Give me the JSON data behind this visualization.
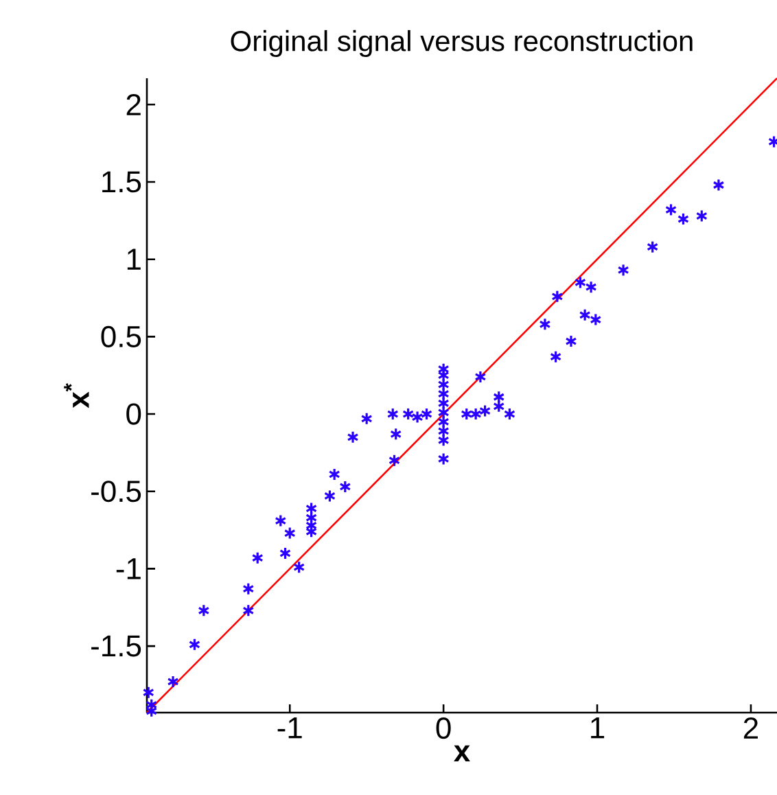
{
  "chart_data": {
    "type": "scatter",
    "title": "Original signal versus reconstruction",
    "xlabel": "x",
    "ylabel": "x$^{*}$",
    "xlim": [
      -1.93,
      2.17
    ],
    "ylim": [
      -1.93,
      2.17
    ],
    "xticks": [
      -1,
      0,
      1,
      2
    ],
    "yticks": [
      -1.5,
      -1,
      -0.5,
      0,
      0.5,
      1,
      1.5,
      2
    ],
    "grid": false,
    "legend": false,
    "series": [
      {
        "color": "#2a00ff",
        "marker": "cross",
        "x": [
          -1.9,
          -1.92,
          -1.9,
          -1.76,
          -1.62,
          -1.56,
          -1.27,
          -1.27,
          -1.21,
          -1.03,
          -0.94,
          -1.06,
          -1.0,
          -0.86,
          -0.86,
          -0.86,
          -0.86,
          -0.74,
          -0.71,
          -0.64,
          -0.59,
          -0.5,
          -0.33,
          -0.31,
          -0.32,
          -0.23,
          -0.17,
          -0.11,
          0,
          0,
          0,
          0,
          0,
          0,
          0,
          0,
          0,
          0,
          0.15,
          0.21,
          0.27,
          0.24,
          0.36,
          0.36,
          0.43,
          0.73,
          0.83,
          0.66,
          0.74,
          0.89,
          0.96,
          0.92,
          0.99,
          1.17,
          1.36,
          1.48,
          1.56,
          1.68,
          1.79,
          2.15
        ],
        "values": [
          -1.92,
          -1.8,
          -1.88,
          -1.73,
          -1.49,
          -1.27,
          -1.27,
          -1.13,
          -0.93,
          -0.9,
          -0.99,
          -0.69,
          -0.77,
          -0.61,
          -0.67,
          -0.72,
          -0.76,
          -0.53,
          -0.39,
          -0.47,
          -0.15,
          -0.03,
          0.0,
          -0.13,
          -0.3,
          0.0,
          -0.02,
          0.0,
          0.29,
          0.25,
          0.19,
          0.13,
          0.07,
          0.01,
          -0.05,
          -0.11,
          -0.17,
          -0.29,
          0.0,
          0.0,
          0.02,
          0.24,
          0.11,
          0.05,
          0.0,
          0.37,
          0.47,
          0.58,
          0.76,
          0.85,
          0.82,
          0.64,
          0.61,
          0.93,
          1.08,
          1.32,
          1.26,
          1.28,
          1.48,
          1.76
        ]
      },
      {
        "type": "line",
        "color": "#ff0000",
        "marker": "none",
        "line_style": "solid",
        "x": [
          -1.93,
          2.17
        ],
        "values": [
          -1.93,
          2.17
        ]
      }
    ]
  }
}
